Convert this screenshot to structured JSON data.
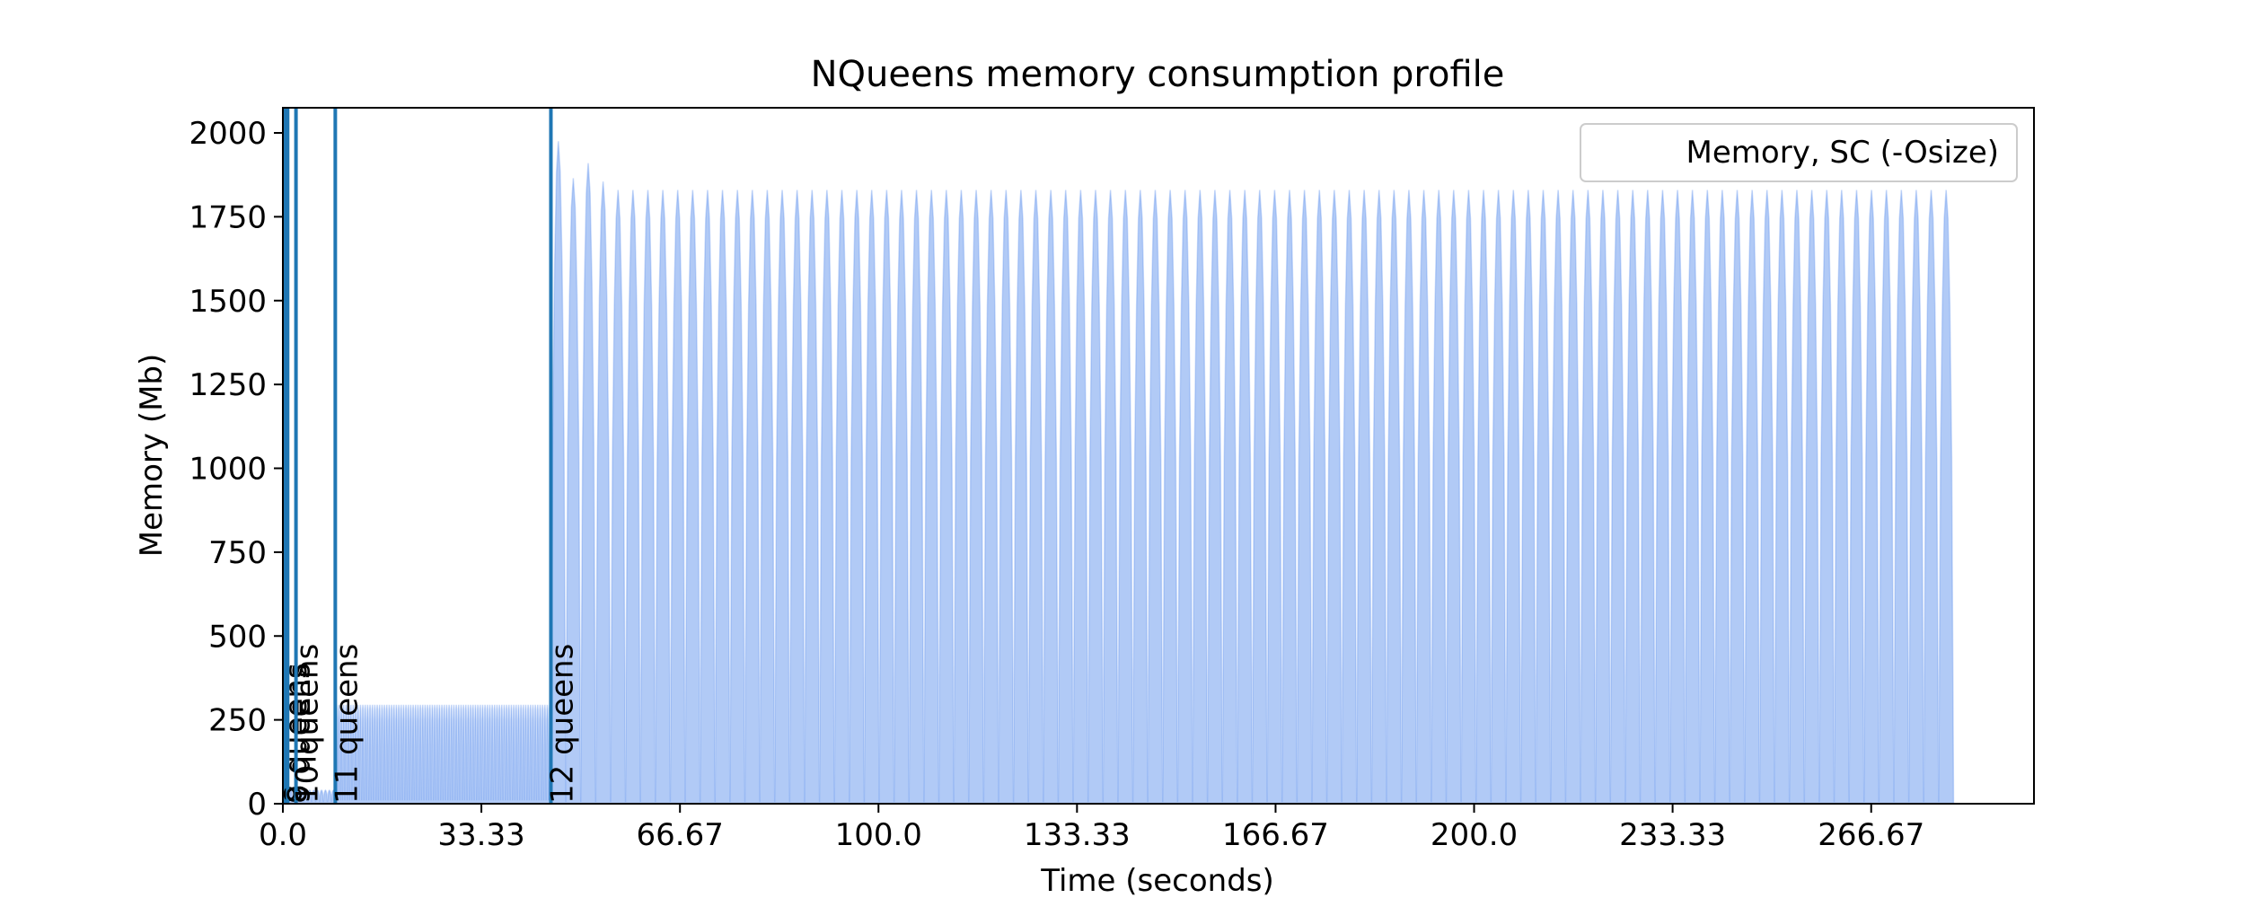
{
  "chart_data": {
    "type": "area",
    "title": "NQueens memory consumption profile",
    "xlabel": "Time (seconds)",
    "ylabel": "Memory (Mb)",
    "xlim": [
      0,
      294
    ],
    "ylim": [
      0,
      2075
    ],
    "x_ticks": [
      0.0,
      33.33,
      66.67,
      100.0,
      133.33,
      166.67,
      200.0,
      233.33,
      266.67
    ],
    "x_tick_labels": [
      "0.0",
      "33.33",
      "66.67",
      "100.0",
      "133.33",
      "166.67",
      "200.0",
      "233.33",
      "266.67"
    ],
    "y_ticks": [
      0,
      250,
      500,
      750,
      1000,
      1250,
      1500,
      1750,
      2000
    ],
    "y_tick_labels": [
      "0",
      "250",
      "500",
      "750",
      "1000",
      "1250",
      "1500",
      "1750",
      "2000"
    ],
    "grid": false,
    "legend_position": "top-right",
    "series": [
      {
        "name": "Memory, SC (-Osize)",
        "color": "#6495ed",
        "segments": [
          {
            "x_start": 0.0,
            "x_end": 2.2,
            "peak": 40,
            "trough": 5,
            "cycles": 4
          },
          {
            "x_start": 2.2,
            "x_end": 8.8,
            "peak": 40,
            "trough": 5,
            "cycles": 10
          },
          {
            "x_start": 8.8,
            "x_end": 45.0,
            "peak": 295,
            "trough": 10,
            "cycles": 90
          },
          {
            "x_start": 45.0,
            "x_end": 280.5,
            "peak": 1830,
            "trough": 5,
            "cycles": 94
          }
        ],
        "first_peaks": [
          1975,
          1865,
          1910,
          1855
        ]
      }
    ],
    "markers": [
      {
        "x": 0.3,
        "label": "8 queens"
      },
      {
        "x": 0.8,
        "label": "9 queens"
      },
      {
        "x": 2.2,
        "label": "10 queens"
      },
      {
        "x": 8.8,
        "label": "11 queens"
      },
      {
        "x": 45.0,
        "label": "12 queens"
      }
    ],
    "marker_color": "#1f77b4"
  }
}
